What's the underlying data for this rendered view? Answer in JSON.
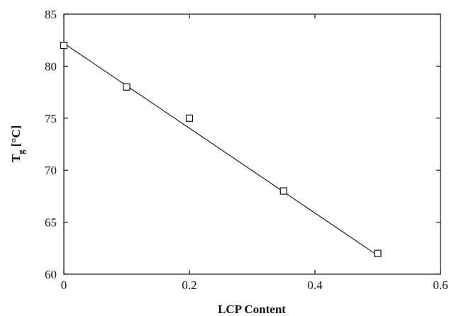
{
  "chart_data": {
    "type": "scatter",
    "title": "",
    "xlabel": "LCP Content",
    "ylabel_main": "T",
    "ylabel_sub": "g",
    "ylabel_unit": " [°C]",
    "xlim": [
      0,
      0.6
    ],
    "ylim": [
      60,
      85
    ],
    "xticks": [
      "0",
      "0.2",
      "0.4",
      "0.6"
    ],
    "xtick_values": [
      0,
      0.2,
      0.4,
      0.6
    ],
    "yticks": [
      "60",
      "65",
      "70",
      "75",
      "80",
      "85"
    ],
    "ytick_values": [
      60,
      65,
      70,
      75,
      80,
      85
    ],
    "grid": false,
    "marker": "open-square",
    "series": [
      {
        "x": [
          0,
          0.1,
          0.2,
          0.35,
          0.5
        ],
        "y": [
          82,
          78,
          75,
          68,
          62
        ]
      }
    ],
    "fit_line": {
      "x": [
        0,
        0.5
      ],
      "y": [
        82.2,
        61.8
      ]
    }
  }
}
